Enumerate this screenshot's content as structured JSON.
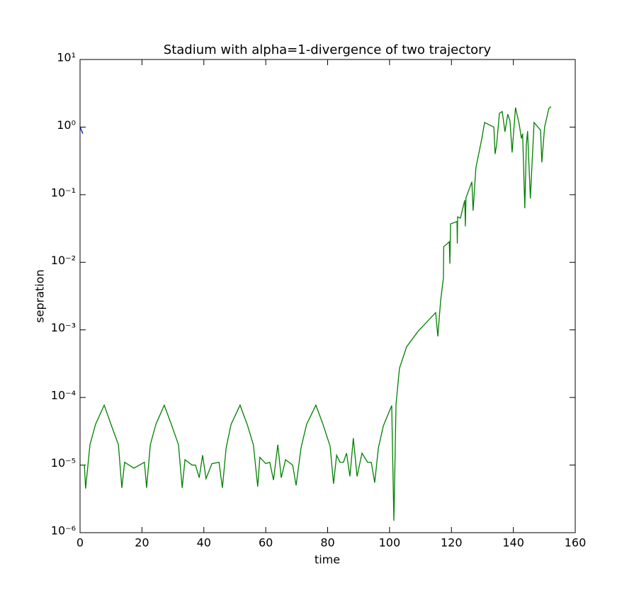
{
  "chart_data": {
    "type": "line",
    "title": "Stadium with alpha=1-divergence of two trajectory",
    "xlabel": "time",
    "ylabel": "sepration",
    "yscale": "log",
    "xlim": [
      0,
      160
    ],
    "xticks": [
      0,
      20,
      40,
      60,
      80,
      100,
      120,
      140,
      160
    ],
    "ylim": [
      1e-06,
      10
    ],
    "yticks": [
      {
        "value": 1e-06,
        "label": "10⁻⁶"
      },
      {
        "value": 1e-05,
        "label": "10⁻⁵"
      },
      {
        "value": 0.0001,
        "label": "10⁻⁴"
      },
      {
        "value": 0.001,
        "label": "10⁻³"
      },
      {
        "value": 0.01,
        "label": "10⁻²"
      },
      {
        "value": 0.1,
        "label": "10⁻¹"
      },
      {
        "value": 1,
        "label": "10⁰"
      },
      {
        "value": 10,
        "label": "10¹"
      }
    ],
    "series": [
      {
        "color": "#0000ff",
        "x": [
          0,
          0.9
        ],
        "values": [
          1.0,
          0.8
        ]
      },
      {
        "color": "#008000",
        "x": [
          0,
          1.4,
          1.8,
          3.2,
          5,
          7.8,
          10,
          12.4,
          13.5,
          14.4,
          17.4,
          20.8,
          21.5,
          22.7,
          24.5,
          27.2,
          29.5,
          31.8,
          33,
          33.9,
          36.2,
          37.3,
          38.5,
          39.6,
          40.7,
          42.6,
          44.9,
          46,
          47.2,
          48.8,
          51.7,
          54,
          56,
          57.4,
          58.1,
          60,
          61.3,
          62.5,
          63.9,
          65,
          66.4,
          68.7,
          69.8,
          71.4,
          73.2,
          76.2,
          78.5,
          80.8,
          81.9,
          82.9,
          84,
          85.1,
          86.1,
          87.2,
          88.3,
          89.5,
          91.1,
          92.9,
          94.1,
          95.2,
          96.4,
          98,
          100.7,
          101.4,
          102.1,
          103.2,
          105.5,
          109.2,
          114.9,
          115.6,
          116.5,
          117.4,
          117.5,
          119.3,
          119.5,
          119.7,
          121.8,
          121.9,
          122,
          122.9,
          124.3,
          124.5,
          124.7,
          126.6,
          127,
          127.9,
          129.8,
          130.7,
          133.7,
          134.1,
          134.6,
          135.5,
          136.4,
          137.3,
          138.2,
          138.9,
          139.6,
          140.7,
          141.9,
          142.6,
          143,
          143.7,
          144.2,
          144.6,
          145.5,
          146.7,
          148.8,
          149.2,
          150.1,
          151.5,
          152.2
        ],
        "values": [
          1e-05,
          1e-05,
          4.5e-06,
          2e-05,
          4e-05,
          7.7e-05,
          4e-05,
          2e-05,
          4.6e-06,
          1.1e-05,
          9e-06,
          1.1e-05,
          4.6e-06,
          2e-05,
          4e-05,
          7.7e-05,
          4e-05,
          2e-05,
          4.6e-06,
          1.2e-05,
          1e-05,
          1e-05,
          6.5e-06,
          1.4e-05,
          6.3e-06,
          1.05e-05,
          1.1e-05,
          4.6e-06,
          1.8e-05,
          4e-05,
          7.7e-05,
          4e-05,
          2e-05,
          4.8e-06,
          1.3e-05,
          1.05e-05,
          1.1e-05,
          6e-06,
          2e-05,
          6.5e-06,
          1.2e-05,
          1e-05,
          5e-06,
          1.8e-05,
          4e-05,
          7.7e-05,
          4e-05,
          1.9e-05,
          5.3e-06,
          1.4e-05,
          1.1e-05,
          1.1e-05,
          1.5e-05,
          6.8e-06,
          2.5e-05,
          6.8e-06,
          1.5e-05,
          1.1e-05,
          1.1e-05,
          5.5e-06,
          1.8e-05,
          3.8e-05,
          7.6e-05,
          1.5e-06,
          8e-05,
          0.00027,
          0.00056,
          0.00095,
          0.0018,
          0.0008,
          0.0027,
          0.0058,
          0.017,
          0.02,
          0.0095,
          0.037,
          0.04,
          0.019,
          0.047,
          0.045,
          0.083,
          0.034,
          0.09,
          0.155,
          0.058,
          0.25,
          0.67,
          1.17,
          1.0,
          0.4,
          0.55,
          1.6,
          1.7,
          0.85,
          1.55,
          1.25,
          0.42,
          1.95,
          1.1,
          0.68,
          0.8,
          0.063,
          0.55,
          0.87,
          0.088,
          1.17,
          0.9,
          0.3,
          1.0,
          1.9,
          2.0
        ]
      }
    ]
  }
}
